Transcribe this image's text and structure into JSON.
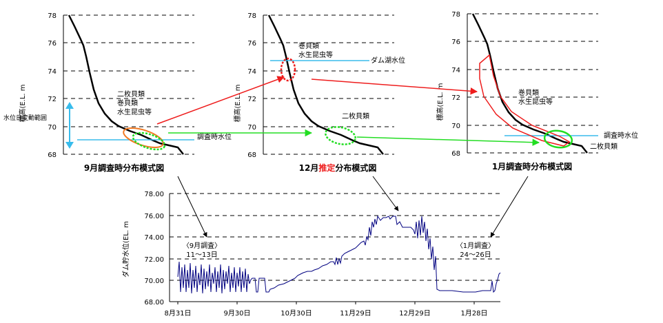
{
  "panels": {
    "left": {
      "y_ticks": [
        "68",
        "70",
        "72",
        "74",
        "76",
        "78"
      ],
      "y_label": "標高(E.L. m",
      "labels": {
        "bivalve": "二枚貝類",
        "snail": "巻貝類",
        "insect": "水生昆虫等"
      },
      "side_label": "水位日変動範囲",
      "water_label": "調査時水位",
      "caption": "9月調査時分布模式図"
    },
    "middle": {
      "y_ticks": [
        "68",
        "70",
        "72",
        "74",
        "76",
        "78"
      ],
      "y_label": "標高(E.L. m",
      "labels": {
        "snail": "巻貝類",
        "insect": "水生昆虫等",
        "bivalve": "二枚貝類"
      },
      "water_label": "ダム湖水位",
      "caption_prefix": "12月",
      "caption_highlight": "推定",
      "caption_suffix": "分布模式図"
    },
    "right": {
      "y_ticks": [
        "68",
        "70",
        "72",
        "74",
        "76",
        "78"
      ],
      "y_label": "標高(E.L. m",
      "labels": {
        "snail": "巻貝類",
        "insect": "水生昆虫等",
        "bivalve": "二枚貝類"
      },
      "water_label": "調査時水位",
      "caption": "1月調査時分布模式図"
    }
  },
  "timeseries": {
    "y_label": "ダム貯水位(EL. m",
    "y_ticks": [
      "68.00",
      "70.00",
      "72.00",
      "74.00",
      "76.00",
      "78.00"
    ],
    "x_ticks": [
      "8月31日",
      "9月30日",
      "10月30日",
      "11月29日",
      "12月29日",
      "1月28日"
    ],
    "annotations": {
      "sep_title": "〈9月調査〉",
      "sep_days": "11～13日",
      "jan_title": "〈1月調査〉",
      "jan_days": "24～26日"
    }
  },
  "colors": {
    "red": "#ee1c1c",
    "green": "#22dd22",
    "cyan": "#38bcec",
    "orange": "#f07820",
    "line": "#000080"
  }
}
